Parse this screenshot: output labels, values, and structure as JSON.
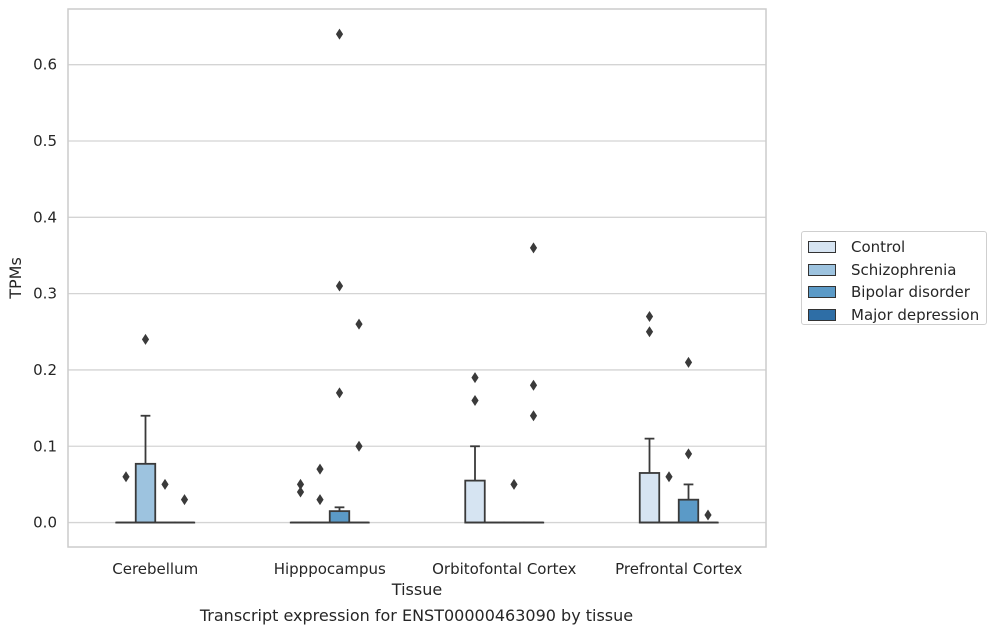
{
  "chart_data": {
    "type": "box",
    "xlabel": "Tissue",
    "ylabel": "TPMs",
    "ylim": [
      -0.032,
      0.673
    ],
    "yticks": [
      "0.0",
      "0.1",
      "0.2",
      "0.3",
      "0.4",
      "0.5",
      "0.6"
    ],
    "grid": "horizontal",
    "legend_position": "right",
    "categories": [
      "Cerebellum",
      "Hipppocampus",
      "Orbitofontal Cortex",
      "Prefrontal Cortex"
    ],
    "series": [
      {
        "name": "Control",
        "color": "#d6e4f2",
        "boxes": [
          {
            "q1": 0,
            "median": 0,
            "q3": 0,
            "whisker_low": 0,
            "whisker_high": 0,
            "outliers": [
              0.06
            ]
          },
          {
            "q1": 0,
            "median": 0,
            "q3": 0,
            "whisker_low": 0,
            "whisker_high": 0,
            "outliers": [
              0.04,
              0.05
            ]
          },
          {
            "q1": 0,
            "median": 0,
            "q3": 0.055,
            "whisker_low": 0,
            "whisker_high": 0.1,
            "outliers": [
              0.16,
              0.19
            ]
          },
          {
            "q1": 0,
            "median": 0,
            "q3": 0.065,
            "whisker_low": 0,
            "whisker_high": 0.11,
            "outliers": [
              0.25,
              0.27
            ]
          }
        ]
      },
      {
        "name": "Schizophrenia",
        "color": "#9dc3df",
        "boxes": [
          {
            "q1": 0,
            "median": 0,
            "q3": 0.077,
            "whisker_low": 0,
            "whisker_high": 0.14,
            "outliers": [
              0.24
            ]
          },
          {
            "q1": 0,
            "median": 0,
            "q3": 0,
            "whisker_low": 0,
            "whisker_high": 0,
            "outliers": [
              0.03,
              0.07
            ]
          },
          {
            "q1": 0,
            "median": 0,
            "q3": 0,
            "whisker_low": 0,
            "whisker_high": 0,
            "outliers": []
          },
          {
            "q1": 0,
            "median": 0,
            "q3": 0,
            "whisker_low": 0,
            "whisker_high": 0,
            "outliers": [
              0.06
            ]
          }
        ]
      },
      {
        "name": "Bipolar disorder",
        "color": "#5b9ac7",
        "boxes": [
          {
            "q1": 0,
            "median": 0,
            "q3": 0,
            "whisker_low": 0,
            "whisker_high": 0,
            "outliers": [
              0.05
            ]
          },
          {
            "q1": 0,
            "median": 0,
            "q3": 0.015,
            "whisker_low": 0,
            "whisker_high": 0.02,
            "outliers": [
              0.17,
              0.31,
              0.64
            ]
          },
          {
            "q1": 0,
            "median": 0,
            "q3": 0,
            "whisker_low": 0,
            "whisker_high": 0,
            "outliers": [
              0.05
            ]
          },
          {
            "q1": 0,
            "median": 0,
            "q3": 0.03,
            "whisker_low": 0,
            "whisker_high": 0.05,
            "outliers": [
              0.09,
              0.21
            ]
          }
        ]
      },
      {
        "name": "Major depression",
        "color": "#2e6ea6",
        "boxes": [
          {
            "q1": 0,
            "median": 0,
            "q3": 0,
            "whisker_low": 0,
            "whisker_high": 0,
            "outliers": [
              0.03
            ]
          },
          {
            "q1": 0,
            "median": 0,
            "q3": 0,
            "whisker_low": 0,
            "whisker_high": 0,
            "outliers": [
              0.1,
              0.26
            ]
          },
          {
            "q1": 0,
            "median": 0,
            "q3": 0,
            "whisker_low": 0,
            "whisker_high": 0,
            "outliers": [
              0.14,
              0.18,
              0.36
            ]
          },
          {
            "q1": 0,
            "median": 0,
            "q3": 0,
            "whisker_low": 0,
            "whisker_high": 0,
            "outliers": [
              0.01
            ]
          }
        ]
      }
    ]
  },
  "caption": "Transcript expression for ENST00000463090 by tissue"
}
